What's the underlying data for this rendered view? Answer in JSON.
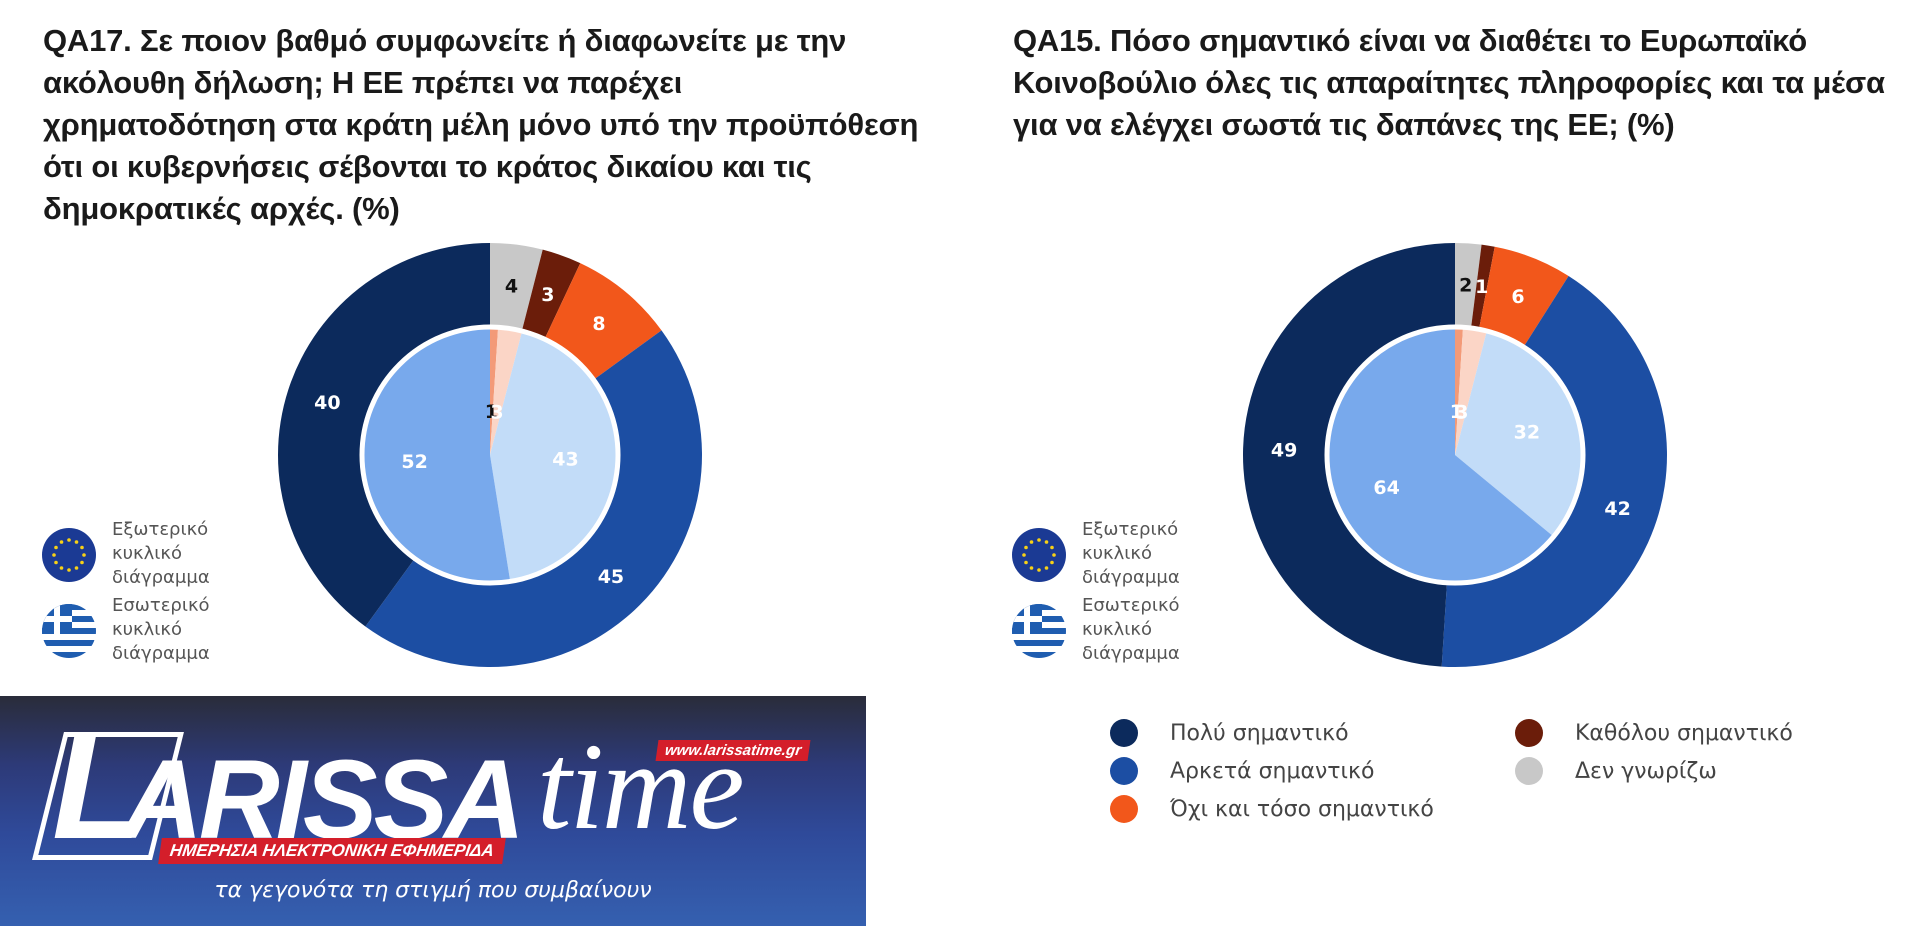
{
  "left_panel": {
    "title": "QA17. Σε ποιον βαθμό συμφωνείτε ή διαφωνείτε με την ακόλουθη δήλωση; Η ΕΕ πρέπει να παρέχει χρηματοδότηση στα κράτη μέλη μόνο υπό την προϋπόθεση ότι οι κυβερνήσεις σέβονται το κράτος δικαίου και τις δημοκρατικές αρχές. (%)",
    "ring_legend": [
      {
        "icon": "eu-flag-icon",
        "label": "Εξωτερικό κυκλικό διάγραμμα"
      },
      {
        "icon": "greek-flag-icon",
        "label": "Εσωτερικό κυκλικό διάγραμμα"
      }
    ]
  },
  "right_panel": {
    "title": "QA15. Πόσο σημαντικό είναι να διαθέτει το Ευρωπαϊκό Κοινοβούλιο όλες τις απαραίτητες πληροφορίες και τα μέσα για να ελέγχει σωστά τις δαπάνες της ΕΕ; (%)",
    "ring_legend": [
      {
        "icon": "eu-flag-icon",
        "label": "Εξωτερικό κυκλικό διάγραμμα"
      },
      {
        "icon": "greek-flag-icon",
        "label": "Εσωτερικό κυκλικό διάγραμμα"
      }
    ],
    "category_legend": [
      {
        "label": "Πολύ σημαντικό",
        "color": "#0c2a5c"
      },
      {
        "label": "Αρκετά σημαντικό",
        "color": "#1c4ea3"
      },
      {
        "label": "Όχι και τόσο σημαντικό",
        "color": "#f2571b"
      },
      {
        "label": "Καθόλου σημαντικό",
        "color": "#6b1d0a"
      },
      {
        "label": "Δεν γνωρίζω",
        "color": "#c8c8c8"
      }
    ]
  },
  "banner": {
    "brand_main": "ARISSA",
    "brand_time": "time",
    "url": "www.larissatime.gr",
    "subtitle": "ΗΜΕΡΗΣΙΑ ΗΛΕΚΤΡΟΝΙΚΗ ΕΦΗΜΕΡΙΔΑ",
    "slogan": "τα γεγονότα τη στιγμή που συμβαίνουν"
  },
  "chart_data": [
    {
      "type": "pie",
      "subtype": "nested-donut",
      "title": "QA17. Σε ποιον βαθμό συμφωνείτε ή διαφωνείτε με την ακόλουθη δήλωση; Η ΕΕ πρέπει να παρέχει χρηματοδότηση στα κράτη μέλη μόνο υπό την προϋπόθεση ότι οι κυβερνήσεις σέβονται το κράτος δικαίου και τις δημοκρατικές αρχές. (%)",
      "series": [
        {
          "name": "Εξωτερικό κυκλικό διάγραμμα",
          "ring": "outer",
          "categories": [
            "Δεν γνωρίζω",
            "Καθόλου",
            "Όχι και τόσο",
            "Αρκετά",
            "Πολύ"
          ],
          "values": [
            4,
            3,
            8,
            45,
            40
          ],
          "colors": [
            "#c8c8c8",
            "#6b1d0a",
            "#f2571b",
            "#1c4ea3",
            "#0c2a5c"
          ],
          "label_dark": [
            true,
            false,
            false,
            false,
            false
          ]
        },
        {
          "name": "Εσωτερικό κυκλικό διάγραμμα",
          "ring": "inner",
          "categories": [
            "Καθόλου",
            "Όχι και τόσο",
            "Αρκετά",
            "Πολύ"
          ],
          "values": [
            1,
            3,
            43,
            52
          ],
          "colors": [
            "#f39a78",
            "#fbd5c6",
            "#c2dcf8",
            "#78a9ec"
          ],
          "label_dark": [
            true,
            false,
            false,
            false
          ]
        }
      ]
    },
    {
      "type": "pie",
      "subtype": "nested-donut",
      "title": "QA15. Πόσο σημαντικό είναι να διαθέτει το Ευρωπαϊκό Κοινοβούλιο όλες τις απαραίτητες πληροφορίες και τα μέσα για να ελέγχει σωστά τις δαπάνες της ΕΕ; (%)",
      "legend": [
        "Πολύ σημαντικό",
        "Αρκετά σημαντικό",
        "Όχι και τόσο σημαντικό",
        "Καθόλου σημαντικό",
        "Δεν γνωρίζω"
      ],
      "legend_position": "bottom",
      "series": [
        {
          "name": "Εξωτερικό κυκλικό διάγραμμα",
          "ring": "outer",
          "categories": [
            "Δεν γνωρίζω",
            "Καθόλου σημαντικό",
            "Όχι και τόσο σημαντικό",
            "Αρκετά σημαντικό",
            "Πολύ σημαντικό"
          ],
          "values": [
            2,
            1,
            6,
            42,
            49
          ],
          "colors": [
            "#c8c8c8",
            "#6b1d0a",
            "#f2571b",
            "#1c4ea3",
            "#0c2a5c"
          ],
          "label_dark": [
            true,
            false,
            false,
            false,
            false
          ]
        },
        {
          "name": "Εσωτερικό κυκλικό διάγραμμα",
          "ring": "inner",
          "categories": [
            "Καθόλου σημαντικό",
            "Όχι και τόσο σημαντικό",
            "Αρκετά σημαντικό",
            "Πολύ σημαντικό"
          ],
          "values": [
            1,
            3,
            32,
            64
          ],
          "colors": [
            "#f39a78",
            "#fbd5c6",
            "#c2dcf8",
            "#78a9ec"
          ],
          "label_dark": [
            false,
            false,
            false,
            false
          ]
        }
      ]
    }
  ]
}
